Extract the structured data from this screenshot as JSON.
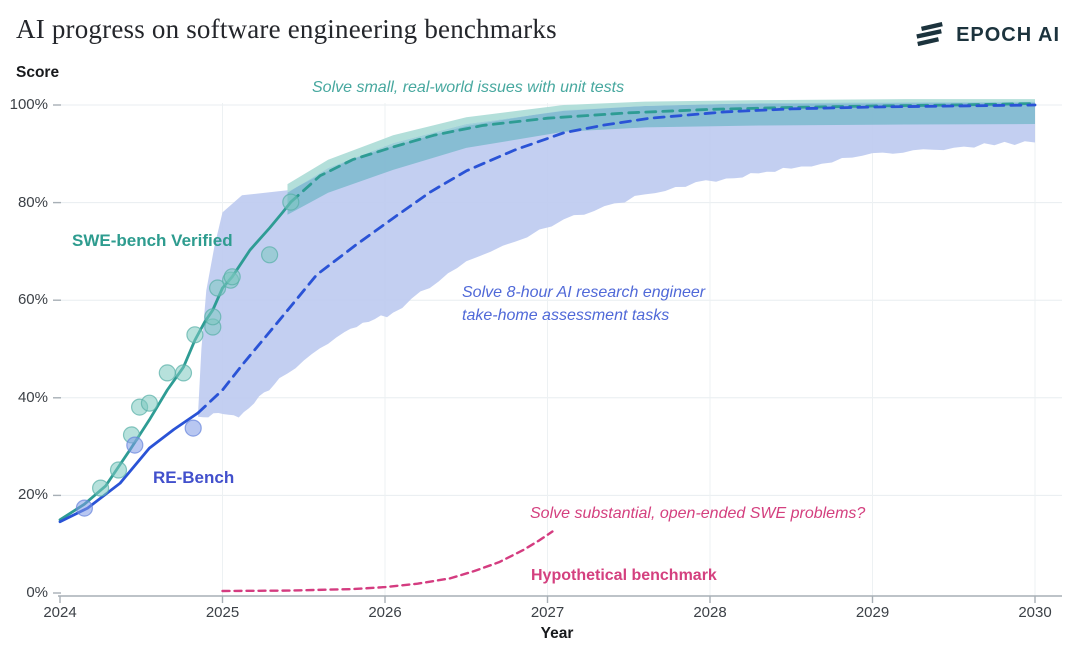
{
  "header": {
    "title": "AI progress on software engineering benchmarks",
    "logo_text": "EPOCH AI"
  },
  "chart_data": {
    "type": "line",
    "title": "AI progress on software engineering benchmarks",
    "xlabel": "Year",
    "ylabel": "Score",
    "xlim": [
      2024,
      2030
    ],
    "ylim": [
      0,
      100
    ],
    "grid": "on",
    "legend_position": "labels-on-chart",
    "x_ticks": [
      "2024",
      "2025",
      "2026",
      "2027",
      "2028",
      "2029",
      "2030"
    ],
    "y_ticks": [
      "0%",
      "20%",
      "40%",
      "60%",
      "80%",
      "100%"
    ],
    "series": [
      {
        "name": "SWE-bench Verified (fit)",
        "style": "solid",
        "color": "teal",
        "points": [
          [
            2024,
            15
          ],
          [
            2024.15,
            18.2
          ],
          [
            2024.28,
            21.9
          ],
          [
            2024.43,
            29.3
          ],
          [
            2024.55,
            35.5
          ],
          [
            2024.66,
            41.6
          ],
          [
            2024.76,
            46.3
          ],
          [
            2024.83,
            51.8
          ],
          [
            2024.89,
            55.5
          ],
          [
            2024.94,
            58
          ],
          [
            2025,
            62.5
          ],
          [
            2025.06,
            64.8
          ],
          [
            2025.17,
            70.3
          ],
          [
            2025.29,
            74.8
          ],
          [
            2025.37,
            78
          ],
          [
            2025.42,
            80.1
          ]
        ]
      },
      {
        "name": "SWE-bench Verified (forecast)",
        "style": "dashed",
        "color": "teal",
        "points": [
          [
            2025.42,
            80.1
          ],
          [
            2025.6,
            85.5
          ],
          [
            2025.8,
            88.8
          ],
          [
            2026.05,
            91.4
          ],
          [
            2026.3,
            93.8
          ],
          [
            2026.6,
            95.8
          ],
          [
            2027,
            97.3
          ],
          [
            2027.5,
            98.4
          ],
          [
            2028,
            99.1
          ],
          [
            2028.5,
            99.5
          ],
          [
            2029,
            99.8
          ],
          [
            2029.5,
            100
          ],
          [
            2030,
            100.3
          ]
        ]
      },
      {
        "name": "RE-Bench (fit)",
        "style": "solid",
        "color": "blue",
        "points": [
          [
            2024,
            14.6
          ],
          [
            2024.17,
            17.4
          ],
          [
            2024.37,
            22.5
          ],
          [
            2024.55,
            29.7
          ],
          [
            2024.7,
            33.5
          ],
          [
            2024.85,
            36.9
          ]
        ]
      },
      {
        "name": "RE-Bench (forecast)",
        "style": "dashed",
        "color": "blue",
        "points": [
          [
            2024.85,
            36.9
          ],
          [
            2025,
            41.6
          ],
          [
            2025.13,
            47.1
          ],
          [
            2025.35,
            55.9
          ],
          [
            2025.58,
            65.2
          ],
          [
            2025.82,
            71.3
          ],
          [
            2026.05,
            76.8
          ],
          [
            2026.28,
            82.2
          ],
          [
            2026.5,
            86.5
          ],
          [
            2026.8,
            90.8
          ],
          [
            2027.1,
            94.3
          ],
          [
            2027.35,
            95.9
          ],
          [
            2027.63,
            97.3
          ],
          [
            2028.1,
            98.6
          ],
          [
            2028.5,
            99.2
          ],
          [
            2029,
            99.6
          ],
          [
            2029.5,
            99.8
          ],
          [
            2030,
            100
          ]
        ]
      },
      {
        "name": "Hypothetical benchmark",
        "style": "dashed",
        "color": "pink",
        "points": [
          [
            2025,
            0.4
          ],
          [
            2025.4,
            0.5
          ],
          [
            2025.8,
            0.8
          ],
          [
            2026,
            1.2
          ],
          [
            2026.2,
            1.9
          ],
          [
            2026.4,
            3
          ],
          [
            2026.55,
            4.5
          ],
          [
            2026.7,
            6.3
          ],
          [
            2026.85,
            8.8
          ],
          [
            2026.95,
            10.8
          ],
          [
            2027.03,
            12.6
          ]
        ]
      }
    ],
    "bands": [
      {
        "name": "re-bench-forecast-interval",
        "color": "blue_band",
        "opacity": 0.9,
        "fuzzy_bottom": true,
        "top": [
          [
            2024.85,
            37
          ],
          [
            2024.87,
            50
          ],
          [
            2024.9,
            62
          ],
          [
            2024.95,
            71
          ],
          [
            2025,
            78
          ],
          [
            2025.12,
            81.5
          ],
          [
            2025.42,
            82.6
          ],
          [
            2025.78,
            88.7
          ],
          [
            2026.05,
            91.6
          ],
          [
            2026.5,
            95.7
          ],
          [
            2027.1,
            99
          ],
          [
            2027.6,
            99.8
          ],
          [
            2028.1,
            100.2
          ],
          [
            2029,
            100.3
          ],
          [
            2030,
            100.5
          ]
        ],
        "bottom": [
          [
            2024.85,
            37
          ],
          [
            2025.1,
            36.9
          ],
          [
            2025.35,
            44.3
          ],
          [
            2025.75,
            53.9
          ],
          [
            2026.05,
            58
          ],
          [
            2026.5,
            68.5
          ],
          [
            2027.1,
            77
          ],
          [
            2027.6,
            82.2
          ],
          [
            2028.1,
            85.5
          ],
          [
            2028.5,
            87.6
          ],
          [
            2029,
            90.4
          ],
          [
            2029.5,
            91.9
          ],
          [
            2030,
            93
          ]
        ]
      },
      {
        "name": "swe-bench-forecast-interval-outer",
        "color": "teal_band_light",
        "opacity": 0.9,
        "fuzzy_bottom": false,
        "top": [
          [
            2025.4,
            83.8
          ],
          [
            2025.65,
            88.8
          ],
          [
            2026.05,
            93.8
          ],
          [
            2026.5,
            97.5
          ],
          [
            2027.1,
            100
          ],
          [
            2027.6,
            100.7
          ],
          [
            2028.3,
            101
          ],
          [
            2029.2,
            101.2
          ],
          [
            2030,
            101.2
          ]
        ],
        "bottom": [
          [
            2025.4,
            82
          ],
          [
            2025.65,
            87.1
          ],
          [
            2026.05,
            92.2
          ],
          [
            2026.5,
            96.1
          ],
          [
            2027.1,
            98.8
          ],
          [
            2027.6,
            99.8
          ],
          [
            2028.3,
            100.4
          ],
          [
            2029.2,
            100.6
          ],
          [
            2030,
            100.7
          ]
        ]
      },
      {
        "name": "swe-bench-forecast-interval",
        "color": "teal_band",
        "opacity": 0.6,
        "fuzzy_bottom": false,
        "top": [
          [
            2025.4,
            82
          ],
          [
            2025.65,
            87.1
          ],
          [
            2026.05,
            92.2
          ],
          [
            2026.5,
            96.1
          ],
          [
            2027.1,
            98.8
          ],
          [
            2027.6,
            99.8
          ],
          [
            2028.3,
            100.4
          ],
          [
            2029.2,
            100.6
          ],
          [
            2030,
            100.7
          ]
        ],
        "bottom": [
          [
            2025.4,
            77.5
          ],
          [
            2025.65,
            82
          ],
          [
            2026.05,
            86.7
          ],
          [
            2026.5,
            91.2
          ],
          [
            2027.1,
            94.5
          ],
          [
            2027.6,
            95.4
          ],
          [
            2028.3,
            95.8
          ],
          [
            2029.2,
            96
          ],
          [
            2030,
            96.1
          ]
        ]
      }
    ],
    "scatter": [
      {
        "name": "swe-bench-scores",
        "color": "teal_point",
        "stroke": "#57AFA6",
        "r": 8,
        "points": [
          [
            2024.25,
            21.5
          ],
          [
            2024.36,
            25.2
          ],
          [
            2024.44,
            32.4
          ],
          [
            2024.49,
            38.1
          ],
          [
            2024.55,
            38.9
          ],
          [
            2024.66,
            45.1
          ],
          [
            2024.76,
            45.1
          ],
          [
            2024.83,
            52.9
          ],
          [
            2024.94,
            54.5
          ],
          [
            2024.94,
            56.6
          ],
          [
            2024.97,
            62.5
          ],
          [
            2025.05,
            64.1
          ],
          [
            2025.06,
            64.8
          ],
          [
            2025.29,
            69.3
          ],
          [
            2025.42,
            80.1
          ]
        ]
      },
      {
        "name": "re-bench-scores",
        "color": "blue_point",
        "stroke": "#6583DC",
        "r": 8,
        "points": [
          [
            2024.15,
            17.4
          ],
          [
            2024.46,
            30.3
          ],
          [
            2024.82,
            33.8
          ]
        ]
      }
    ],
    "annotations": [
      {
        "name": "swe-annotation",
        "text": "Solve small, real-world issues with unit tests",
        "color": "teal"
      },
      {
        "name": "re-annotation",
        "text": "Solve 8-hour AI research engineer\ntake-home assessment tasks",
        "color": "blue"
      },
      {
        "name": "hypothetical-annotation",
        "text": "Solve substantial, open-ended SWE problems?",
        "color": "pink"
      }
    ],
    "series_labels": [
      {
        "name": "swe-bench-label",
        "text": "SWE-bench Verified"
      },
      {
        "name": "re-bench-label",
        "text": "RE-Bench"
      },
      {
        "name": "hypothetical-label",
        "text": "Hypothetical benchmark"
      }
    ],
    "colors": {
      "teal": "#2E9C94",
      "teal_band": "#5FB0BF",
      "teal_band_light": "#ABDCD6",
      "teal_point": "#7BC8BF",
      "blue": "#2A53D6",
      "blue_band": "#BCCAEF",
      "blue_point": "#7E99E6",
      "pink": "#D43C80",
      "grid": "#E8EDF0",
      "grid_vertical": "#EDF1F3",
      "axis": "#A7AFB6",
      "tick_text": "#3C4147"
    }
  }
}
